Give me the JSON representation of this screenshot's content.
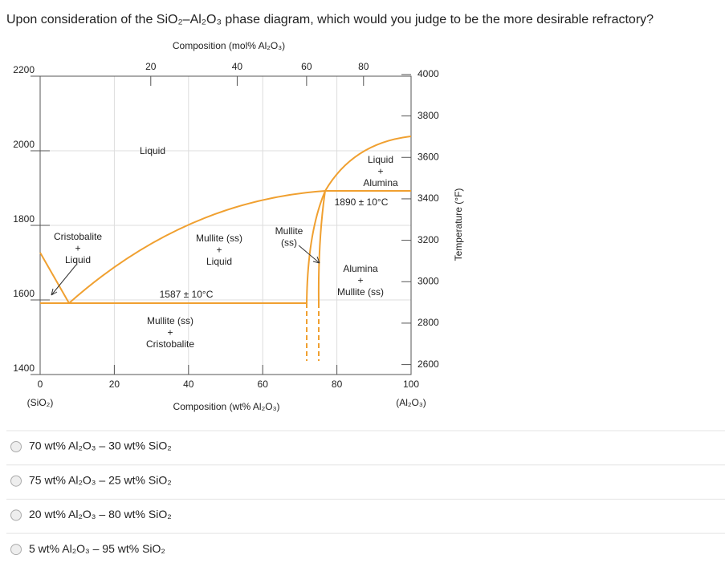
{
  "question": "Upon consideration of the SiO₂–Al₂O₃ phase diagram, which would you judge to be the more desirable refractory?",
  "diagram": {
    "top_axis_label": "Composition (mol% Al₂O₃)",
    "top_ticks": [
      20,
      40,
      60,
      80
    ],
    "bottom_axis_label": "Composition (wt% Al₂O₃)",
    "bottom_ticks": [
      0,
      20,
      40,
      60,
      80,
      100
    ],
    "left_end_label": "(SiO₂)",
    "right_end_label": "(Al₂O₃)",
    "left_ticks": [
      1400,
      1600,
      1800,
      2000,
      2200
    ],
    "right_axis_label": "Temperature (°F)",
    "right_ticks": [
      2600,
      2800,
      3000,
      3200,
      3400,
      3600,
      3800,
      4000
    ],
    "regions": [
      {
        "lines": [
          "Liquid"
        ]
      },
      {
        "lines": [
          "Liquid",
          "+",
          "Alumina"
        ]
      },
      {
        "lines": [
          "Cristobalite",
          "+",
          "Liquid"
        ]
      },
      {
        "lines": [
          "Mullite (ss)",
          "+",
          "Liquid"
        ]
      },
      {
        "lines": [
          "Mullite",
          "(ss)"
        ]
      },
      {
        "lines": [
          "Alumina",
          "+",
          "Mullite (ss)"
        ]
      },
      {
        "lines": [
          "Mullite (ss)",
          "+",
          "Cristobalite"
        ]
      }
    ],
    "annotations": [
      "1890 ± 10°C",
      "1587 ± 10°C"
    ]
  },
  "options": [
    "70 wt% Al₂O₃ – 30 wt% SiO₂",
    "75 wt% Al₂O₃ – 25 wt% SiO₂",
    "20 wt% Al₂O₃ – 80 wt% SiO₂",
    "5 wt% Al₂O₃ – 95 wt% SiO₂"
  ]
}
